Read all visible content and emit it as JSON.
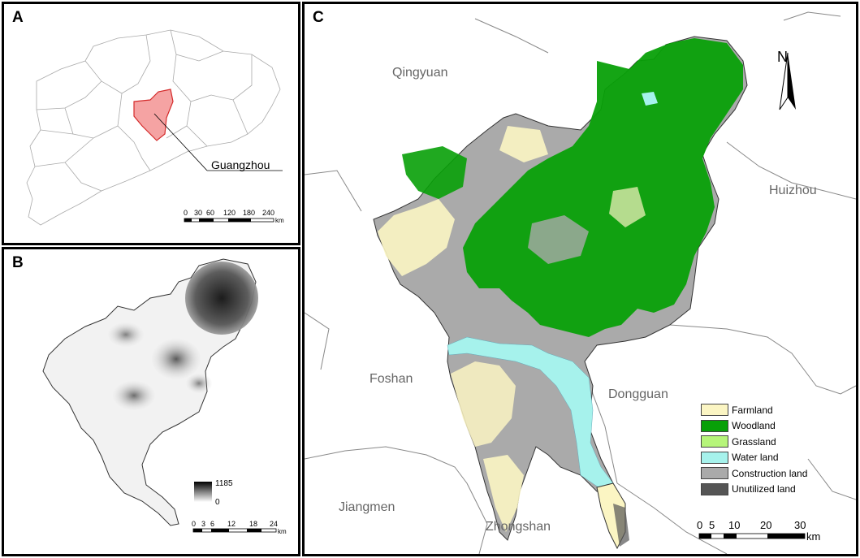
{
  "panels": {
    "a": {
      "label": "A",
      "callout": "Guangzhou",
      "scale": {
        "ticks": [
          "0",
          "30",
          "60",
          "120",
          "180",
          "240"
        ],
        "unit": "km"
      }
    },
    "b": {
      "label": "B",
      "elevation_legend": {
        "max": "1185",
        "min": "0"
      },
      "scale": {
        "ticks": [
          "0",
          "3",
          "6",
          "12",
          "18",
          "24"
        ],
        "unit": "km"
      }
    },
    "c": {
      "label": "C",
      "north": "N",
      "cities": [
        "Qingyuan",
        "Huizhou",
        "Foshan",
        "Dongguan",
        "Jiangmen",
        "Zhongshan"
      ],
      "legend": [
        {
          "label": "Farmland",
          "color": "#fbf5c3"
        },
        {
          "label": "Woodland",
          "color": "#08a008"
        },
        {
          "label": "Grassland",
          "color": "#b6f57a"
        },
        {
          "label": "Water land",
          "color": "#a6f2ec"
        },
        {
          "label": "Construction land",
          "color": "#aaaaaa"
        },
        {
          "label": "Unutilized land",
          "color": "#555555"
        }
      ],
      "scale": {
        "ticks": [
          "0",
          "5",
          "10",
          "20",
          "30"
        ],
        "unit": "km"
      }
    }
  },
  "colors": {
    "highlight": "#f5a3a3",
    "highlight_border": "#d42a2a",
    "boundary": "#999999"
  }
}
